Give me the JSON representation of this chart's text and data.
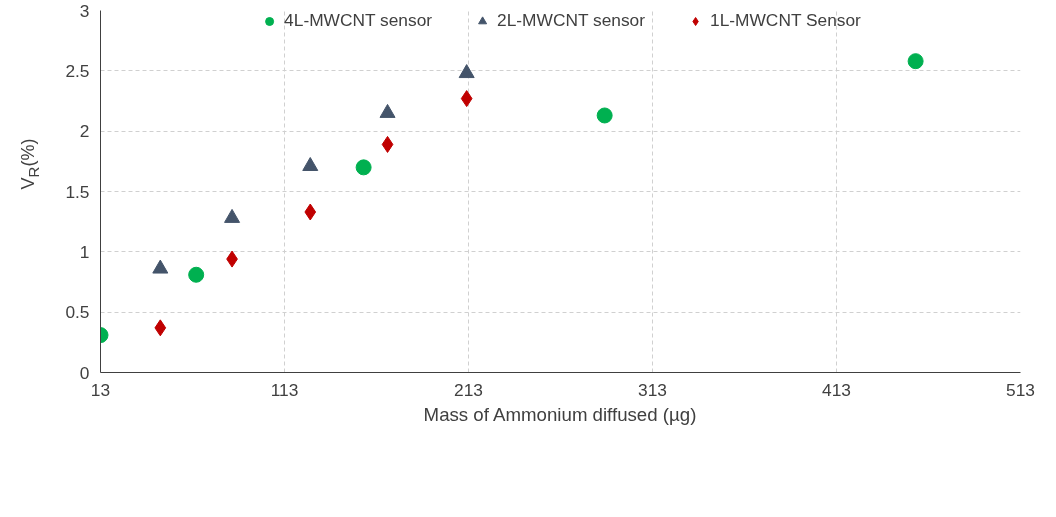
{
  "chart_data": {
    "type": "scatter",
    "xlabel": "Mass of Ammonium diffused (µg)",
    "ylabel": "V$_{R}$(%)",
    "xlim": [
      13,
      513
    ],
    "xticks": [
      13,
      113,
      213,
      313,
      413,
      513
    ],
    "ylim": [
      0,
      3
    ],
    "yticks": [
      0,
      0.5,
      1,
      1.5,
      2,
      2.5,
      3
    ],
    "grid": true,
    "legend": "top",
    "series": [
      {
        "name": "4L-MWCNT sensor",
        "color": "#00b050",
        "marker": "circle",
        "x": [
          13,
          65,
          156,
          287,
          456
        ],
        "values": [
          0.31,
          0.81,
          1.7,
          2.13,
          2.58
        ]
      },
      {
        "name": "2L-MWCNT sensor",
        "color": "#44546a",
        "marker": "triangle",
        "x": [
          45.5,
          84.5,
          127,
          169,
          212
        ],
        "values": [
          0.86,
          1.28,
          1.71,
          2.15,
          2.48
        ]
      },
      {
        "name": "1L-MWCNT Sensor",
        "color": "#c00000",
        "marker": "diamond",
        "x": [
          45.5,
          84.5,
          127,
          169,
          212
        ],
        "values": [
          0.37,
          0.94,
          1.33,
          1.89,
          2.27
        ]
      }
    ]
  }
}
